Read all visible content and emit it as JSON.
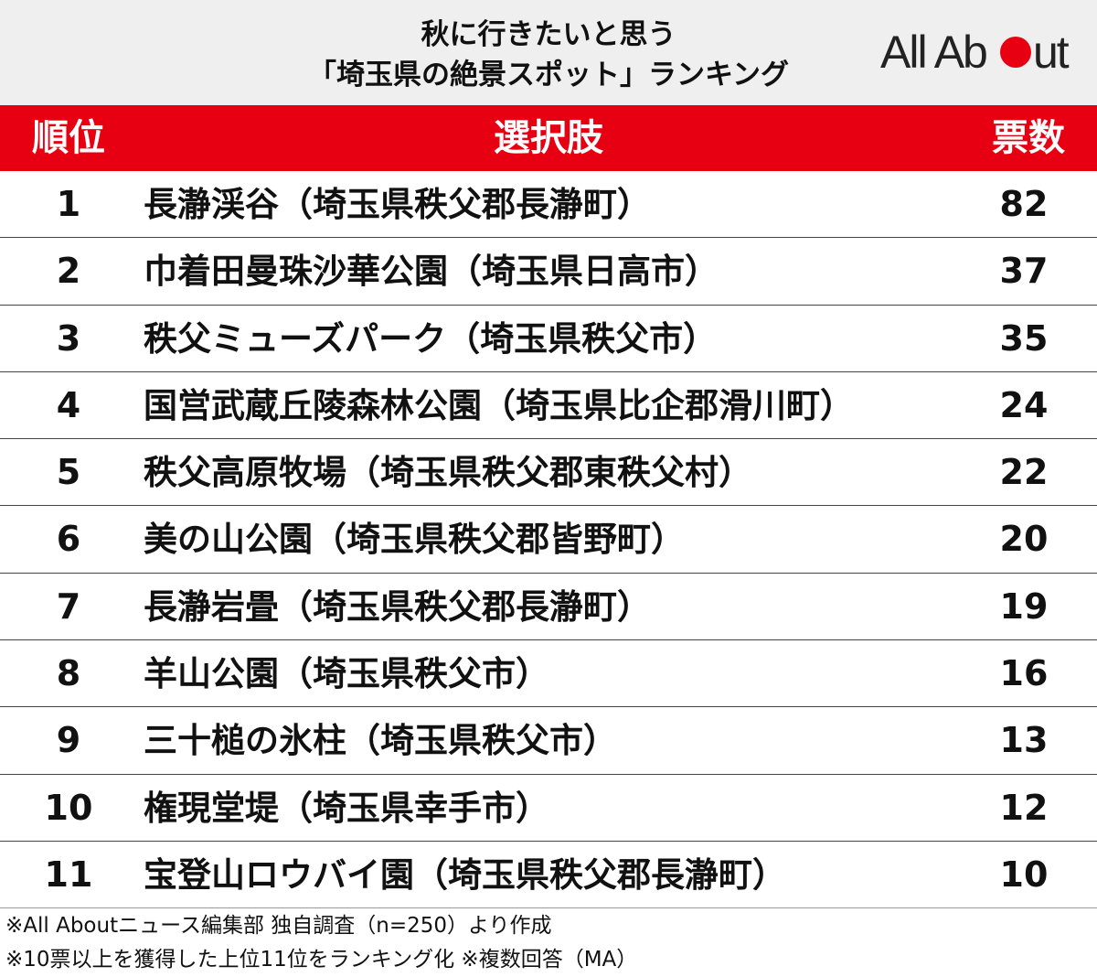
{
  "header": {
    "title_line1": "秋に行きたいと思う",
    "title_line2": "「埼玉県の絶景スポット」ランキング",
    "logo_text_a": "All Ab",
    "logo_text_b": "ut",
    "logo_dot_color": "#e60012"
  },
  "table": {
    "col_rank": "順位",
    "col_choice": "選択肢",
    "col_votes": "票数",
    "header_color": "#e60012"
  },
  "chart_data": {
    "type": "table",
    "title": "秋に行きたいと思う「埼玉県の絶景スポット」ランキング",
    "columns": [
      "順位",
      "選択肢",
      "票数"
    ],
    "rows": [
      {
        "rank": "1",
        "choice": "長瀞渓谷（埼玉県秩父郡長瀞町）",
        "votes": 82
      },
      {
        "rank": "2",
        "choice": "巾着田曼珠沙華公園（埼玉県日高市）",
        "votes": 37
      },
      {
        "rank": "3",
        "choice": "秩父ミューズパーク（埼玉県秩父市）",
        "votes": 35
      },
      {
        "rank": "4",
        "choice": "国営武蔵丘陵森林公園（埼玉県比企郡滑川町）",
        "votes": 24
      },
      {
        "rank": "5",
        "choice": "秩父高原牧場（埼玉県秩父郡東秩父村）",
        "votes": 22
      },
      {
        "rank": "6",
        "choice": "美の山公園（埼玉県秩父郡皆野町）",
        "votes": 20
      },
      {
        "rank": "7",
        "choice": "長瀞岩畳（埼玉県秩父郡長瀞町）",
        "votes": 19
      },
      {
        "rank": "8",
        "choice": "羊山公園（埼玉県秩父市）",
        "votes": 16
      },
      {
        "rank": "9",
        "choice": "三十槌の氷柱（埼玉県秩父市）",
        "votes": 13
      },
      {
        "rank": "10",
        "choice": "権現堂堤（埼玉県幸手市）",
        "votes": 12
      },
      {
        "rank": "11",
        "choice": "宝登山ロウバイ園（埼玉県秩父郡長瀞町）",
        "votes": 10
      }
    ]
  },
  "footer": {
    "note1": "※All Aboutニュース編集部 独自調査（n=250）より作成",
    "note2": "※10票以上を獲得した上位11位をランキング化 ※複数回答（MA）"
  }
}
